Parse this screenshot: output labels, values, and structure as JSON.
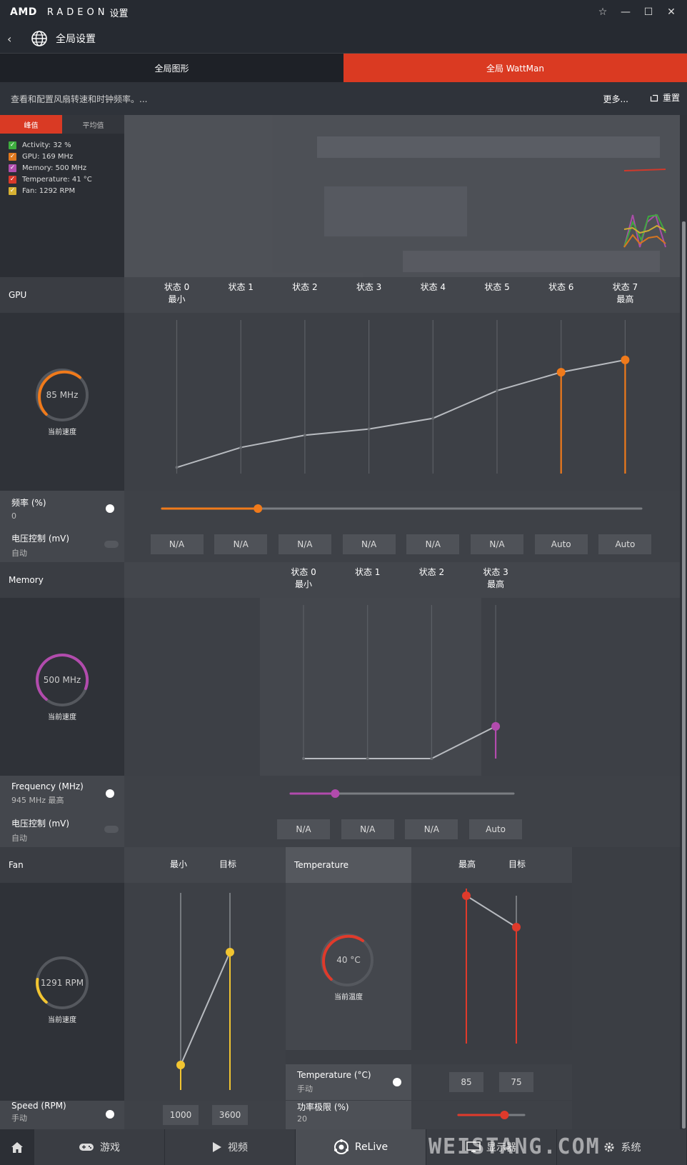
{
  "titlebar": {
    "amd": "AMD",
    "radeon": "RADEON",
    "settings": "设置",
    "controls": [
      "☆",
      "—",
      "☐",
      "✕"
    ]
  },
  "nav": {
    "title": "全局设置"
  },
  "tabs": [
    {
      "label": "全局图形"
    },
    {
      "label": "全局 WattMan"
    }
  ],
  "desc": {
    "text": "查看和配置风扇转速和时钟频率。...",
    "more": "更多...",
    "reset": "重置"
  },
  "graph_toggle": {
    "peak": "峰值",
    "avg": "平均值"
  },
  "legend": [
    {
      "label": "Activity: 32 %",
      "color": "#3fae3f"
    },
    {
      "label": "GPU: 169 MHz",
      "color": "#e0791f"
    },
    {
      "label": "Memory: 500 MHz",
      "color": "#b04fae"
    },
    {
      "label": "Temperature: 41 °C",
      "color": "#d9392a"
    },
    {
      "label": "Fan: 1292 RPM",
      "color": "#d7b133"
    }
  ],
  "gpu": {
    "title": "GPU",
    "states": [
      {
        "name": "状态 0",
        "sub": "最小"
      },
      {
        "name": "状态 1",
        "sub": ""
      },
      {
        "name": "状态 2",
        "sub": ""
      },
      {
        "name": "状态 3",
        "sub": ""
      },
      {
        "name": "状态 4",
        "sub": ""
      },
      {
        "name": "状态 5",
        "sub": ""
      },
      {
        "name": "状态 6",
        "sub": ""
      },
      {
        "name": "状态 7",
        "sub": "最高"
      }
    ],
    "gauge_value": "85 MHz",
    "gauge_label": "当前速度",
    "freq_label": "频率 (%)",
    "freq_value": "0",
    "freq_slider": 0.2,
    "volt_label": "电压控制 (mV)",
    "volt_value": "自动",
    "volt_cells": [
      "N/A",
      "N/A",
      "N/A",
      "N/A",
      "N/A",
      "N/A",
      "Auto",
      "Auto"
    ],
    "curve": [
      0.04,
      0.17,
      0.25,
      0.29,
      0.36,
      0.54,
      0.66,
      0.74
    ]
  },
  "memory": {
    "title": "Memory",
    "states": [
      {
        "name": "状态 0",
        "sub": "最小"
      },
      {
        "name": "状态 1",
        "sub": ""
      },
      {
        "name": "状态 2",
        "sub": ""
      },
      {
        "name": "状态 3",
        "sub": "最高"
      }
    ],
    "gauge_value": "500 MHz",
    "gauge_label": "当前速度",
    "freq_label": "Frequency (MHz)",
    "freq_value": "945 MHz 最高",
    "freq_slider": 0.2,
    "volt_label": "电压控制 (mV)",
    "volt_value": "自动",
    "volt_cells": [
      "N/A",
      "N/A",
      "N/A",
      "Auto"
    ],
    "curve": [
      0.0,
      0.0,
      0.0,
      0.21
    ]
  },
  "fan": {
    "title": "Fan",
    "cols": [
      "最小",
      "目标"
    ],
    "gauge_value": "1291 RPM",
    "gauge_label": "当前速度",
    "speed_label": "Speed (RPM)",
    "speed_mode": "手动",
    "values": [
      "1000",
      "3600"
    ]
  },
  "temperature": {
    "title": "Temperature",
    "cols": [
      "最高",
      "目标"
    ],
    "gauge_value": "40 °C",
    "gauge_label": "当前温度",
    "temp_label": "Temperature (°C)",
    "temp_mode": "手动",
    "values": [
      "85",
      "75"
    ],
    "power_label": "功率极限 (%)",
    "power_value": "20",
    "power_slider": 0.7
  },
  "bottom": [
    {
      "label": ""
    },
    {
      "label": "游戏"
    },
    {
      "label": "视频"
    },
    {
      "label": "ReLive"
    },
    {
      "label": "显示器"
    },
    {
      "label": "系统"
    }
  ],
  "watermark": "WEISTANG.COM",
  "colors": {
    "accent": "#da3a22",
    "gpu": "#f07a1b",
    "memory": "#b24bad",
    "fan": "#f2c531",
    "temp": "#e03a2b"
  }
}
